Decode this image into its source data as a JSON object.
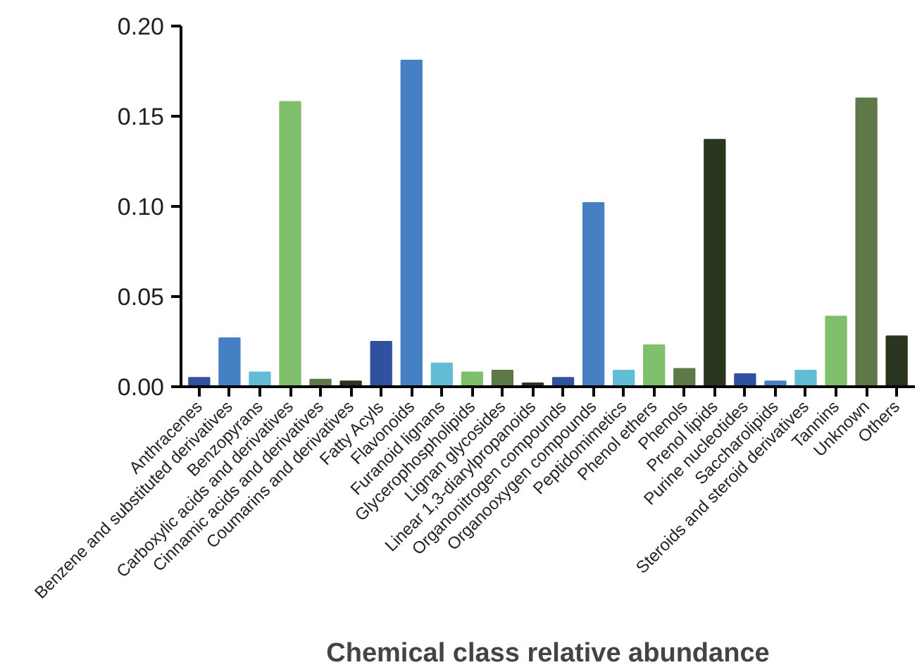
{
  "chart_data": {
    "type": "bar",
    "xlabel": "Chemical class relative abundance",
    "categories": [
      "Anthracenes",
      "Benzene and substituted derivatives",
      "Benzopyrans",
      "Carboxylic acids and derivatives",
      "Cinnamic acids and derivatives",
      "Coumarins and derivatives",
      "Fatty Acyls",
      "Flavonoids",
      "Furanoid lignans",
      "Glycerophospholipids",
      "Lignan glycosides",
      "Linear 1,3-diarylpropanoids",
      "Organonitrogen compounds",
      "Organooxygen compounds",
      "Peptidomimetics",
      "Phenol ethers",
      "Phenols",
      "Prenol lipids",
      "Purine nucleotides",
      "Saccharolipids",
      "Steroids and steroid derivatives",
      "Tannins",
      "Unknown",
      "Others"
    ],
    "values": [
      0.005,
      0.027,
      0.008,
      0.158,
      0.004,
      0.003,
      0.025,
      0.181,
      0.013,
      0.008,
      0.009,
      0.002,
      0.005,
      0.102,
      0.009,
      0.023,
      0.01,
      0.137,
      0.007,
      0.003,
      0.009,
      0.039,
      0.16,
      0.028
    ],
    "colors": [
      "#3050a0",
      "#4480c2",
      "#62bcd6",
      "#80c06c",
      "#5e7848",
      "#2a3520",
      "#3050a0",
      "#4480c2",
      "#62bcd6",
      "#80c06c",
      "#5e7848",
      "#2a3520",
      "#3050a0",
      "#4480c2",
      "#62bcd6",
      "#80c06c",
      "#5e7848",
      "#2a3520",
      "#3050a0",
      "#4480c2",
      "#62bcd6",
      "#80c06c",
      "#5e7848",
      "#2a3520"
    ],
    "ylim": [
      0,
      0.2
    ],
    "yticks": [
      {
        "value": 0,
        "label": "0.00"
      },
      {
        "value": 0.05,
        "label": "0.05"
      },
      {
        "value": 0.1,
        "label": "0.10"
      },
      {
        "value": 0.15,
        "label": "0.15"
      },
      {
        "value": 0.2,
        "label": "0.20"
      }
    ],
    "grid": false
  }
}
